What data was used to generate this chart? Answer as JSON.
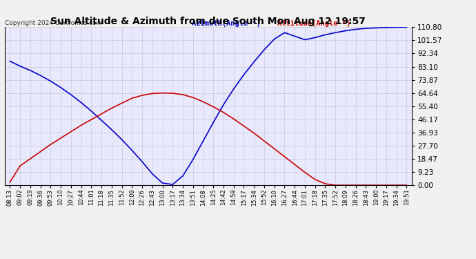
{
  "title": "Sun Altitude & Azimuth from due South Mon Aug 12 19:57",
  "copyright": "Copyright 2024 Curtronics.com",
  "legend_azimuth": "Azimuth(Angle °)",
  "legend_altitude": "Altitude(Angle °)",
  "yticks": [
    0.0,
    9.23,
    18.47,
    27.7,
    36.93,
    46.17,
    55.4,
    64.64,
    73.87,
    83.1,
    92.34,
    101.57,
    110.8
  ],
  "ymin": 0.0,
  "ymax": 110.8,
  "background_color": "#f0f0f0",
  "plot_bg_color": "#e8e8ff",
  "azimuth_color": "#0000cc",
  "altitude_color": "#cc0000",
  "grid_color": "#aaaaaa",
  "title_color": "#000000",
  "xtick_labels": [
    "08:13",
    "09:02",
    "09:19",
    "09:36",
    "09:53",
    "10:10",
    "10:27",
    "10:44",
    "11:01",
    "11:18",
    "11:35",
    "11:52",
    "12:09",
    "12:26",
    "12:43",
    "13:00",
    "13:17",
    "13:34",
    "13:51",
    "14:08",
    "14:25",
    "14:42",
    "14:59",
    "15:17",
    "15:34",
    "15:52",
    "16:10",
    "16:27",
    "16:44",
    "17:01",
    "17:18",
    "17:35",
    "17:52",
    "18:09",
    "18:26",
    "18:43",
    "19:00",
    "19:17",
    "19:34",
    "19:51"
  ],
  "azimuth_values": [
    87.0,
    83.5,
    80.5,
    77.0,
    73.0,
    68.5,
    63.5,
    58.0,
    52.0,
    45.5,
    39.0,
    32.0,
    24.5,
    16.5,
    8.0,
    1.5,
    0.5,
    6.5,
    18.0,
    31.0,
    44.0,
    56.5,
    67.5,
    77.5,
    86.5,
    95.0,
    102.5,
    107.0,
    104.5,
    102.0,
    103.5,
    105.5,
    107.0,
    108.3,
    109.3,
    110.0,
    110.3,
    110.6,
    110.75,
    110.8
  ],
  "altitude_values": [
    2.0,
    13.5,
    18.5,
    23.5,
    28.5,
    33.0,
    37.5,
    42.0,
    46.0,
    50.0,
    54.0,
    57.5,
    61.0,
    63.0,
    64.3,
    64.64,
    64.5,
    63.5,
    61.5,
    58.5,
    55.0,
    51.0,
    46.5,
    41.5,
    36.5,
    31.0,
    25.5,
    20.0,
    14.5,
    9.0,
    4.0,
    1.0,
    0.0,
    0.0,
    0.0,
    0.0,
    0.0,
    0.0,
    0.0,
    0.0
  ]
}
